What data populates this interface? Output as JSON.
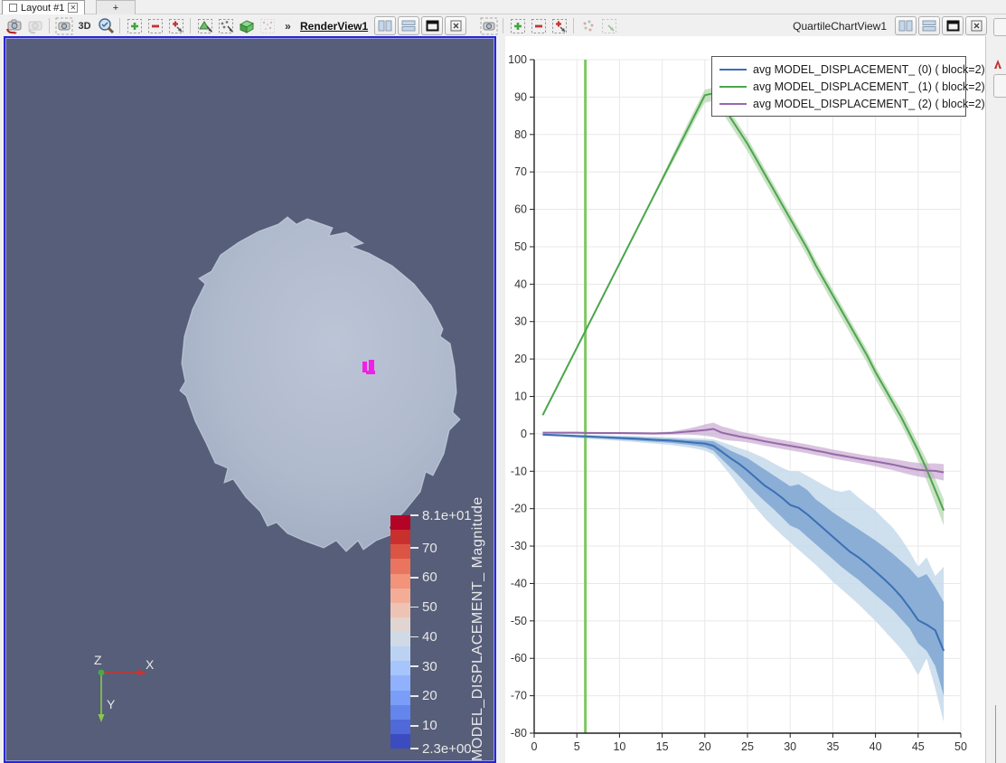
{
  "app": {
    "tab_bar": {
      "layout_tab_label": "Layout #1",
      "add_tab_label": "+"
    },
    "toolbar_left": {
      "label_3d": "3D",
      "overflow_label": "»",
      "view_title": "RenderView1"
    },
    "toolbar_right": {
      "view_title": "QuartileChartView1"
    }
  },
  "render_view": {
    "background_color": "#565e79",
    "selection_color": "#f020e8",
    "orientation_axes": {
      "x_label": "X",
      "y_label": "Y",
      "z_label": "Z",
      "x_color": "#cc3333",
      "y_color": "#8cc84b"
    },
    "colorbar": {
      "title": "MODEL_DISPLACEMENT_ Magnitude",
      "max_label": "8.1e+01",
      "min_label": "2.3e+00",
      "range_min": 2.3,
      "range_max": 81,
      "tick_values": [
        10,
        20,
        30,
        40,
        50,
        60,
        70
      ],
      "colors_bottom_to_top": [
        "#3b4cc0",
        "#4f69d9",
        "#6485ec",
        "#7a9df8",
        "#90b2fe",
        "#a6c5fc",
        "#bbd2f4",
        "#cfdae6",
        "#e0d5d0",
        "#edc4b4",
        "#f3ad97",
        "#f2937a",
        "#ea755e",
        "#dc5444",
        "#c8302d",
        "#b40426"
      ]
    }
  },
  "chart_data": {
    "type": "line",
    "title": "",
    "xlabel": "",
    "ylabel": "",
    "xlim": [
      0,
      50
    ],
    "ylim": [
      -80,
      100
    ],
    "xticks": [
      0,
      5,
      10,
      15,
      20,
      25,
      30,
      35,
      40,
      45,
      50
    ],
    "yticks": [
      100,
      90,
      80,
      70,
      60,
      50,
      40,
      30,
      20,
      10,
      0,
      -10,
      -20,
      -30,
      -40,
      -50,
      -60,
      -70,
      -80
    ],
    "grid": true,
    "legend_position": "top-right",
    "vertical_marker": {
      "x": 6,
      "color": "#7dc860"
    },
    "x": [
      1,
      3,
      5,
      6,
      8,
      10,
      12,
      14,
      16,
      18,
      19,
      20,
      21,
      22,
      23,
      24,
      25,
      26,
      27,
      28,
      29,
      30,
      31,
      32,
      33,
      34,
      35,
      36,
      37,
      38,
      39,
      40,
      41,
      42,
      43,
      44,
      45,
      46,
      47,
      48
    ],
    "series": [
      {
        "name": "avg MODEL_DISPLACEMENT_ (0) ( block=2)",
        "color": "#3c6fb5",
        "values": [
          -0.2,
          -0.4,
          -0.6,
          -0.7,
          -0.9,
          -1.1,
          -1.3,
          -1.6,
          -1.8,
          -2.2,
          -2.4,
          -2.6,
          -3.2,
          -4.8,
          -6.5,
          -8,
          -9.8,
          -11.8,
          -13.8,
          -15.3,
          -17,
          -19,
          -19.8,
          -21.5,
          -23.5,
          -25.5,
          -27.5,
          -29.5,
          -31.5,
          -33,
          -34.8,
          -36.8,
          -38.8,
          -41,
          -43.5,
          -46.5,
          -49.8,
          -51,
          -52.5,
          -58
        ],
        "inner_low": [
          -0.4,
          -0.6,
          -0.9,
          -1,
          -1.2,
          -1.5,
          -1.8,
          -2.1,
          -2.4,
          -2.9,
          -3.2,
          -3.6,
          -4.5,
          -6.8,
          -9,
          -11.2,
          -13.5,
          -15.8,
          -18,
          -20,
          -22.2,
          -24.5,
          -25.5,
          -27.5,
          -29.5,
          -31.5,
          -33.5,
          -35.5,
          -37.3,
          -39,
          -41,
          -43,
          -45,
          -47,
          -49.5,
          -52,
          -56,
          -58,
          -62,
          -70
        ],
        "inner_high": [
          -0.05,
          -0.2,
          -0.35,
          -0.4,
          -0.6,
          -0.75,
          -0.9,
          -1.1,
          -1.3,
          -1.6,
          -1.7,
          -1.8,
          -2,
          -3.2,
          -4.5,
          -5.5,
          -6.5,
          -8,
          -9.5,
          -11,
          -12.5,
          -14,
          -13.5,
          -15,
          -17.5,
          -19.2,
          -21,
          -22.5,
          -24,
          -25.5,
          -27,
          -28.5,
          -30.2,
          -32,
          -34,
          -36,
          -38.5,
          -37.5,
          -41,
          -45
        ],
        "outer_low": [
          -0.5,
          -0.8,
          -1.1,
          -1.3,
          -1.6,
          -1.9,
          -2.2,
          -2.6,
          -3,
          -3.6,
          -4,
          -4.5,
          -5.5,
          -8.2,
          -11,
          -14,
          -17,
          -19.8,
          -22.5,
          -24.8,
          -27,
          -29,
          -31,
          -33,
          -35,
          -37.2,
          -39.5,
          -41.5,
          -43.5,
          -45.5,
          -47.8,
          -50,
          -52.5,
          -55,
          -57.5,
          -60.5,
          -64.5,
          -60,
          -68,
          -77
        ],
        "outer_high": [
          0,
          -0.1,
          -0.2,
          -0.25,
          -0.35,
          -0.5,
          -0.6,
          -0.75,
          -0.9,
          -1.1,
          -1.2,
          -1.3,
          -1.5,
          -2.2,
          -3,
          -3.8,
          -4.5,
          -5.5,
          -6.5,
          -7.8,
          -9,
          -10,
          -10,
          -11.2,
          -12.5,
          -13.8,
          -15,
          -15.5,
          -15,
          -17,
          -18.8,
          -20.5,
          -22.8,
          -25,
          -28,
          -31.5,
          -35.5,
          -33,
          -38,
          -35.5
        ],
        "inner_color": "#83a9d2",
        "outer_color": "#c6d9eb"
      },
      {
        "name": "avg MODEL_DISPLACEMENT_ (1) ( block=2)",
        "color": "#4ca64c",
        "values": [
          5,
          14,
          23,
          27.5,
          36.5,
          45.5,
          54.5,
          63.5,
          72.5,
          81.5,
          86,
          90.5,
          91,
          88,
          84.5,
          81,
          77.5,
          73.5,
          69.5,
          65.5,
          61.5,
          57.5,
          53.5,
          49.5,
          45,
          41,
          37,
          33,
          29,
          25,
          21,
          16.5,
          12.5,
          8.5,
          4.5,
          0,
          -4.5,
          -9.5,
          -15,
          -20.5
        ],
        "band_low": [
          4.5,
          13.5,
          22.5,
          27,
          36,
          45,
          54,
          63,
          71.5,
          80,
          84.5,
          88.5,
          89,
          86,
          82.5,
          79,
          75.5,
          71.5,
          67.5,
          63.5,
          59.5,
          55.5,
          51.5,
          47.5,
          43,
          39,
          35,
          31,
          27,
          23,
          19,
          14.5,
          10.5,
          6.5,
          2.5,
          -2,
          -7,
          -12.5,
          -18.5,
          -24.5
        ],
        "band_high": [
          5.5,
          14.5,
          23.5,
          28,
          37,
          46,
          55,
          64,
          73.5,
          83,
          87.5,
          92,
          92.5,
          89.5,
          86,
          82.5,
          79,
          75,
          71,
          67,
          63,
          59,
          55,
          51,
          46.5,
          42.5,
          38.5,
          34.5,
          30.5,
          26.5,
          22.5,
          18,
          14,
          10,
          6.5,
          2,
          -2.5,
          -7,
          -12,
          -17.5
        ],
        "band_color": "#b7d8b2"
      },
      {
        "name": "avg MODEL_DISPLACEMENT_ (2) ( block=2)",
        "color": "#9668a8",
        "values": [
          0.3,
          0.3,
          0.3,
          0.25,
          0.2,
          0.2,
          0.15,
          0.1,
          0.2,
          0.6,
          0.8,
          1,
          1.3,
          0.3,
          -0.2,
          -0.7,
          -1.1,
          -1.5,
          -2,
          -2.4,
          -2.8,
          -3.2,
          -3.6,
          -4,
          -4.5,
          -4.9,
          -5.4,
          -5.8,
          -6.2,
          -6.6,
          -7,
          -7.4,
          -7.8,
          -8.2,
          -8.7,
          -9.2,
          -9.6,
          -9.8,
          -9.9,
          -10.3
        ],
        "band_low": [
          0.1,
          0.1,
          0.05,
          0,
          -0.05,
          -0.1,
          -0.15,
          -0.2,
          -0.2,
          -0.2,
          -0.3,
          -0.5,
          -0.8,
          -1.5,
          -1.8,
          -2,
          -2.3,
          -2.7,
          -3.2,
          -3.6,
          -4,
          -4.4,
          -4.8,
          -5.2,
          -5.7,
          -6.1,
          -6.6,
          -7,
          -7.4,
          -7.8,
          -8.2,
          -8.7,
          -9.2,
          -9.7,
          -10.3,
          -10.9,
          -11.4,
          -11.8,
          -12,
          -12.5
        ],
        "band_high": [
          0.5,
          0.5,
          0.5,
          0.5,
          0.45,
          0.5,
          0.45,
          0.4,
          0.6,
          1.4,
          1.9,
          2.5,
          3,
          2,
          1.4,
          0.7,
          0.2,
          -0.3,
          -0.8,
          -1.2,
          -1.6,
          -2,
          -2.4,
          -2.8,
          -3.3,
          -3.7,
          -4.2,
          -4.6,
          -5,
          -5.4,
          -5.8,
          -6.1,
          -6.4,
          -6.7,
          -7.1,
          -7.5,
          -7.8,
          -7.9,
          -7.9,
          -8.1
        ],
        "band_color": "#c9abd2"
      }
    ]
  }
}
